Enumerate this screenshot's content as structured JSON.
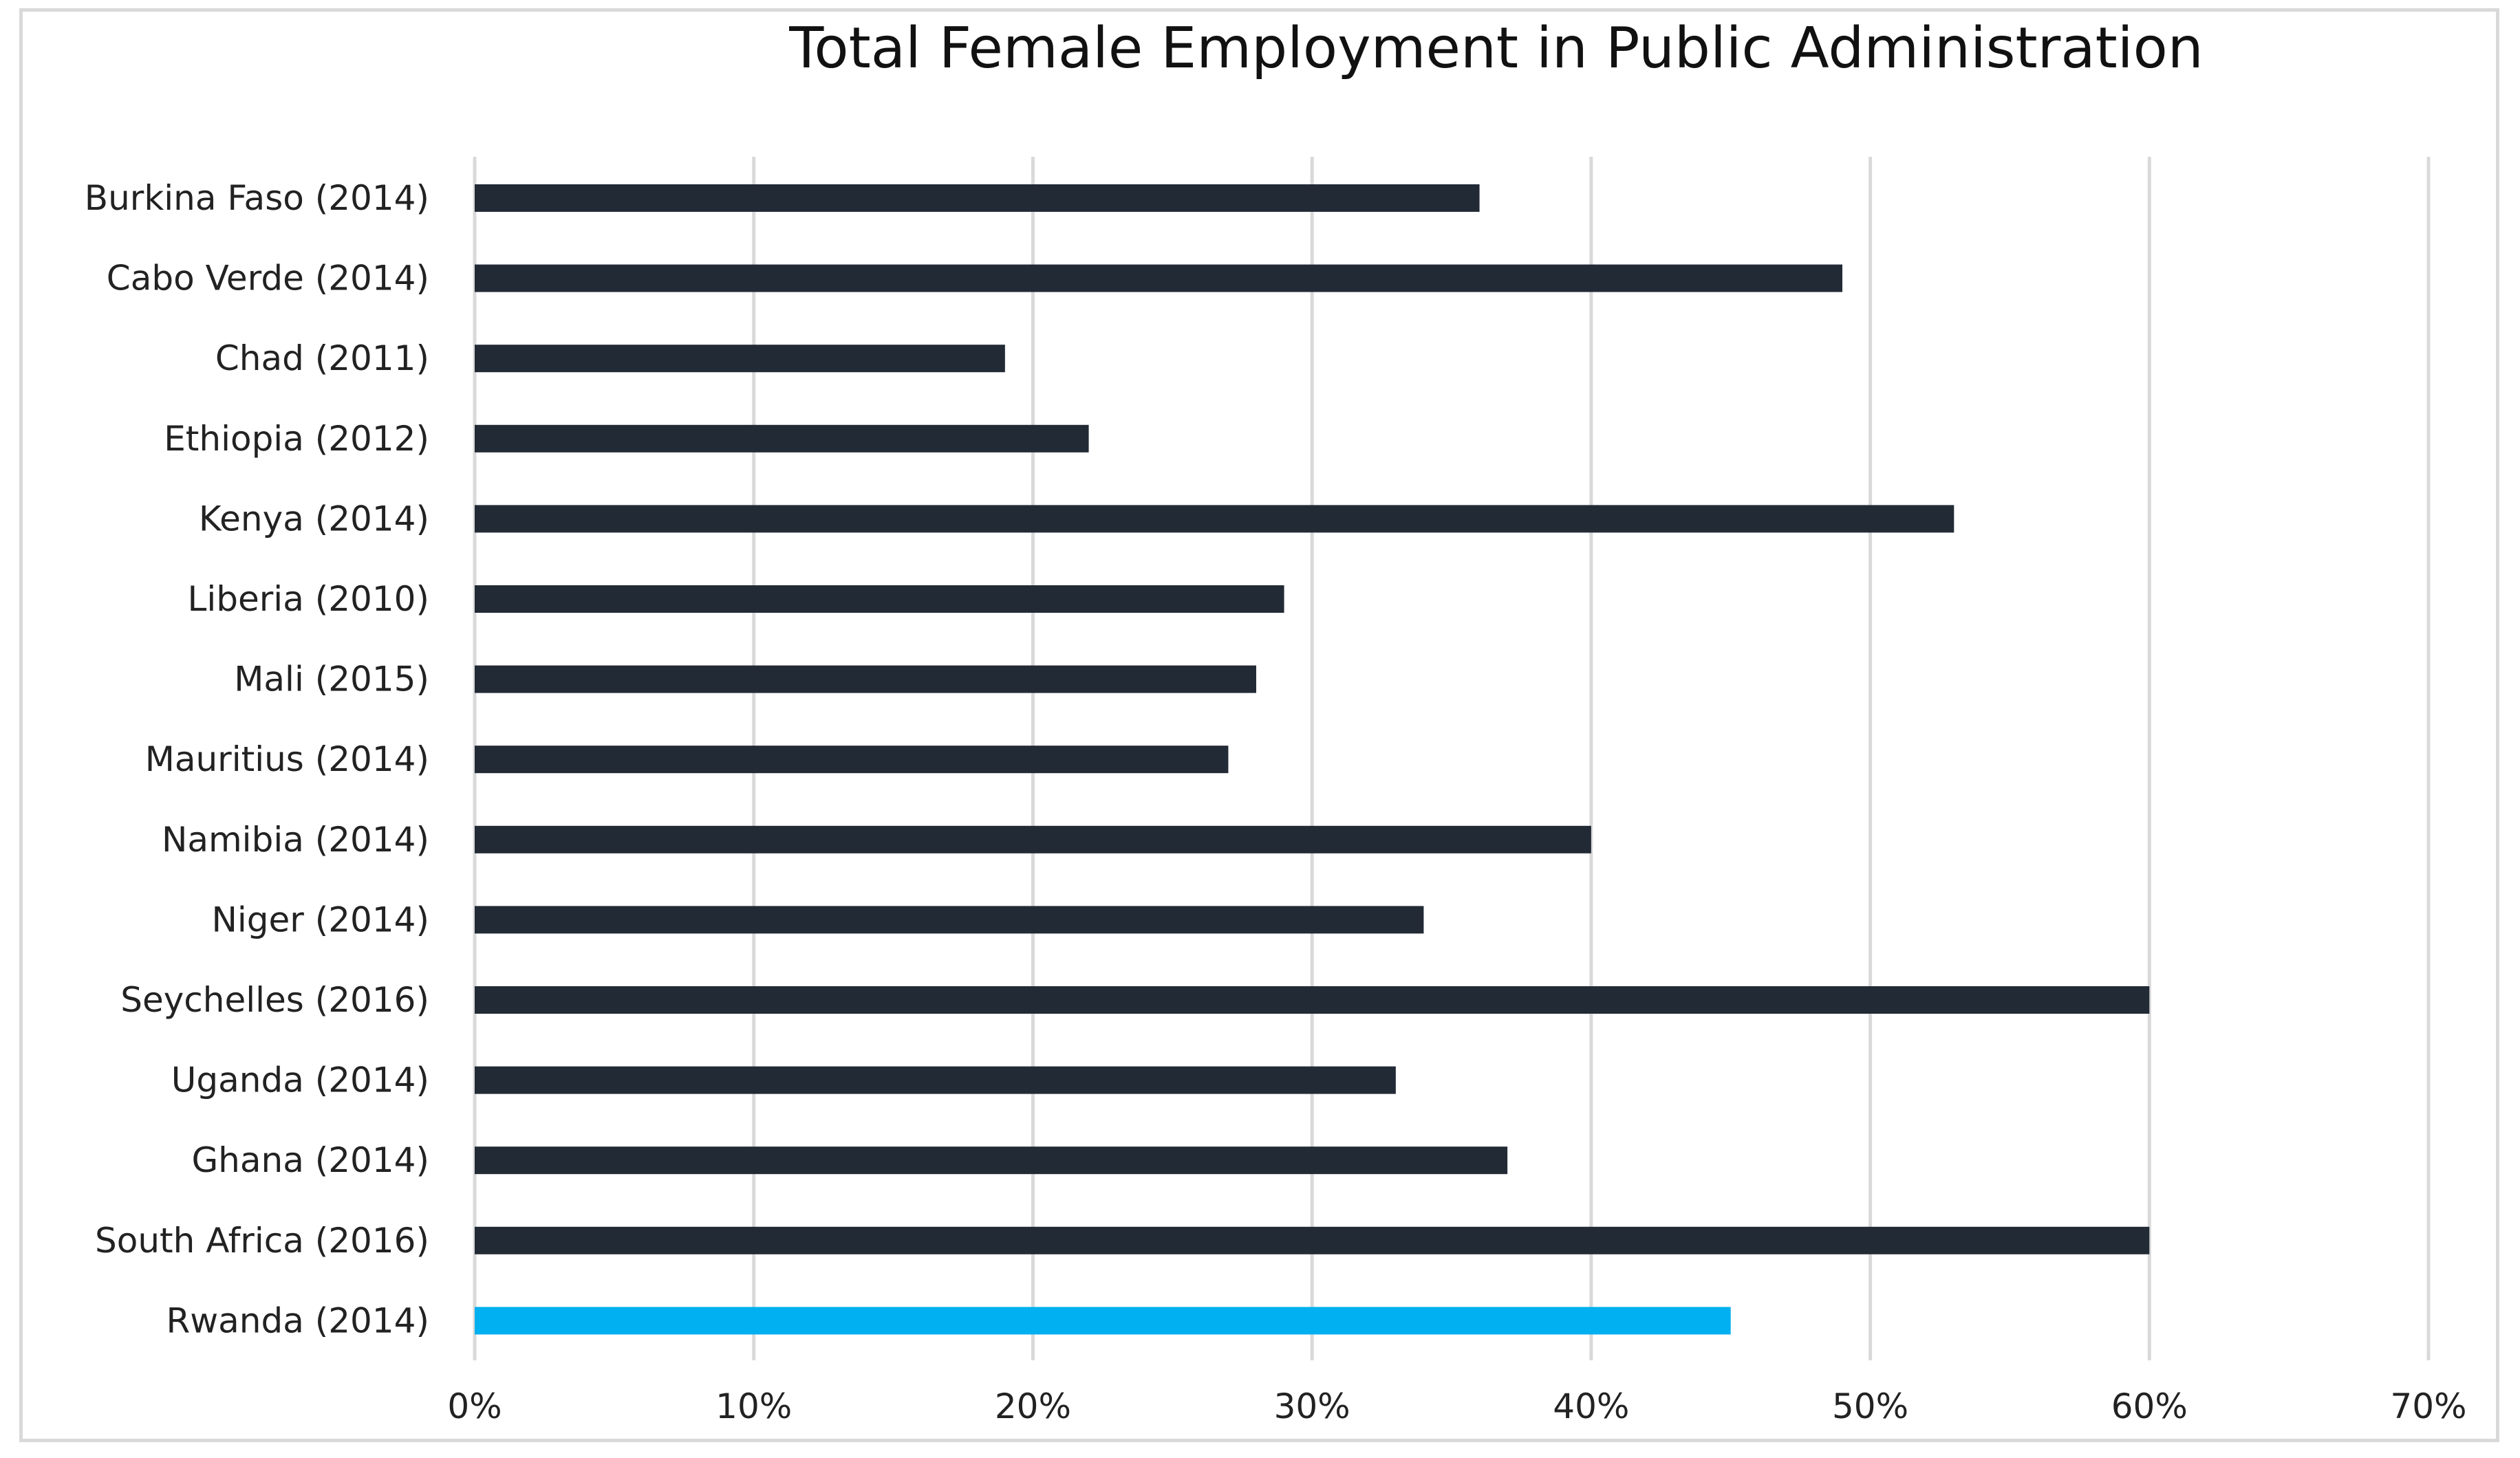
{
  "chart_data": {
    "type": "bar",
    "orientation": "horizontal",
    "title": "Total Female Employment in Public Administration",
    "xlabel": "",
    "ylabel": "",
    "categories": [
      "Burkina Faso (2014)",
      "Cabo Verde (2014)",
      "Chad (2011)",
      "Ethiopia (2012)",
      "Kenya (2014)",
      "Liberia (2010)",
      "Mali (2015)",
      "Mauritius (2014)",
      "Namibia (2014)",
      "Niger (2014)",
      "Seychelles (2016)",
      "Uganda (2014)",
      "Ghana (2014)",
      "South Africa (2016)",
      "Rwanda (2014)"
    ],
    "values": [
      36,
      49,
      19,
      22,
      53,
      29,
      28,
      27,
      40,
      34,
      60,
      33,
      37,
      60,
      45
    ],
    "xlim": [
      0,
      70
    ],
    "x_ticks": [
      "0%",
      "10%",
      "20%",
      "30%",
      "40%",
      "50%",
      "60%",
      "70%"
    ],
    "grid": "vertical",
    "legend": "none",
    "colors": {
      "default_bar": "#222a35",
      "highlight_bar": "#00b0f0",
      "gridline": "#d9d9d9"
    },
    "highlight_category": "Rwanda (2014)"
  }
}
